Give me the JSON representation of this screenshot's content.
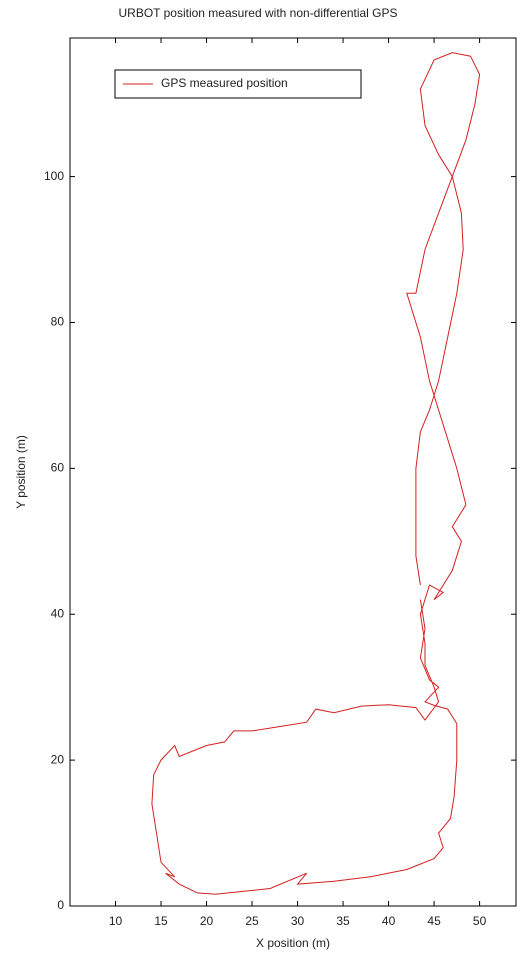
{
  "chart_data": {
    "type": "line",
    "title": "URBOT position measured with non-differential GPS",
    "x_label": "X position (m)",
    "y_label": "Y position (m)",
    "xlim": [
      5,
      54
    ],
    "ylim": [
      0,
      119
    ],
    "xticks": [
      10,
      15,
      20,
      25,
      30,
      35,
      40,
      45,
      50
    ],
    "yticks": [
      0,
      20,
      40,
      60,
      80,
      100
    ],
    "legend_position": "upper left",
    "series": [
      {
        "name": "GPS measured position",
        "color": "#d42020",
        "x": [
          43.5,
          44,
          43.5,
          44.5,
          45.5,
          44,
          45,
          46.5,
          47.5,
          47.5,
          47.2,
          46.8,
          45.5,
          46,
          45,
          42,
          38,
          34,
          30,
          31,
          27,
          24,
          21,
          19,
          17,
          15.5,
          16.5,
          15,
          14.5,
          14,
          14.2,
          15,
          16.5,
          17,
          20,
          22,
          23,
          25,
          28,
          31,
          32,
          34,
          37,
          40,
          43,
          44,
          45.5,
          45,
          44,
          44,
          43.5,
          44.5,
          46,
          45,
          47,
          48,
          47,
          48.5,
          47.5,
          46.5,
          45.5,
          44.5,
          43.5,
          42,
          43,
          44,
          45.5,
          47,
          48.5,
          49.5,
          50,
          49,
          47,
          45,
          43.5,
          44,
          45.5,
          47,
          48,
          48.2,
          47.5,
          46.5,
          45.5,
          44.5,
          43.5,
          43,
          43,
          43,
          43.5
        ],
        "y": [
          42,
          38,
          34,
          31,
          30,
          28,
          27.5,
          27,
          25,
          20,
          15,
          12,
          10,
          8,
          6.5,
          5,
          4,
          3.4,
          3,
          4.5,
          2.4,
          2,
          1.6,
          1.8,
          3,
          4.5,
          4,
          6,
          10,
          14,
          18,
          20,
          22,
          20.5,
          22,
          22.5,
          24,
          24,
          24.6,
          25.2,
          27,
          26.5,
          27.4,
          27.6,
          27.2,
          25.5,
          28,
          30,
          33,
          36,
          40,
          44,
          43,
          42,
          46,
          50,
          52,
          55,
          60,
          64,
          68,
          72,
          78,
          84,
          84,
          90,
          95,
          100,
          105,
          110,
          114,
          116.5,
          117,
          116,
          112,
          107,
          103,
          100,
          95,
          90,
          84,
          78,
          72,
          68,
          65,
          60,
          54,
          48,
          44
        ]
      }
    ]
  }
}
